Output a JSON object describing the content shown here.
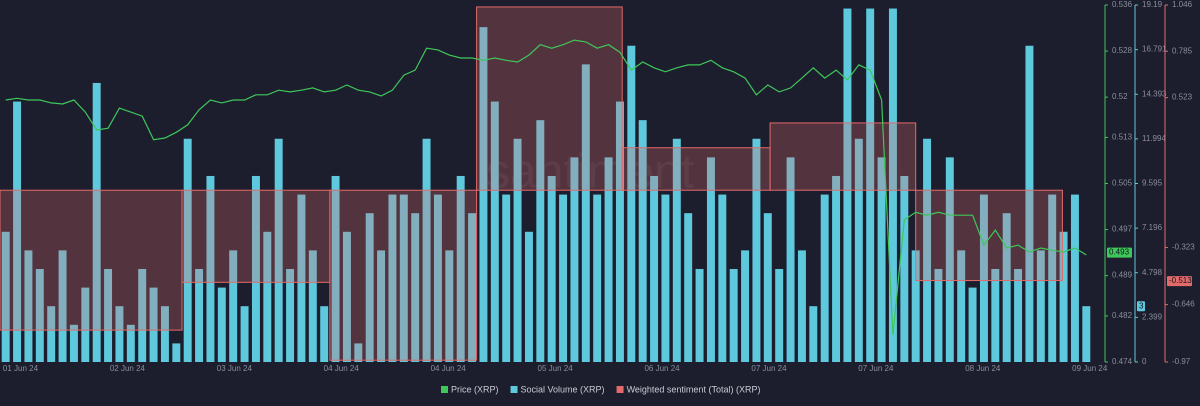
{
  "chart_data": {
    "type": "combo",
    "watermark": "santiment",
    "xlim": [
      0,
      96
    ],
    "xticks": [
      {
        "value": 1.8,
        "label": "01 Jun 24"
      },
      {
        "value": 11.2,
        "label": "02 Jun 24"
      },
      {
        "value": 20.6,
        "label": "03 Jun 24"
      },
      {
        "value": 30,
        "label": "04 Jun 24"
      },
      {
        "value": 39.4,
        "label": "04 Jun 24"
      },
      {
        "value": 48.8,
        "label": "05 Jun 24"
      },
      {
        "value": 58.2,
        "label": "06 Jun 24"
      },
      {
        "value": 67.6,
        "label": "07 Jun 24"
      },
      {
        "value": 77,
        "label": "07 Jun 24"
      },
      {
        "value": 86.4,
        "label": "08 Jun 24"
      },
      {
        "value": 95.8,
        "label": "09 Jun 24"
      }
    ],
    "ylim": [
      0.474,
      0.536
    ],
    "yticks": [
      0.536,
      0.528,
      0.52,
      0.513,
      0.505,
      0.497,
      0.489,
      0.482,
      0.474
    ],
    "y2lim": [
      0,
      19.19
    ],
    "y2ticks": [
      19.19,
      16.791,
      14.393,
      11.994,
      9.595,
      7.196,
      4.798,
      2.399,
      0
    ],
    "y3lim": [
      -0.97,
      1.046
    ],
    "y3ticks": [
      1.046,
      0.785,
      0.523,
      -0.323,
      -0.646,
      -0.97
    ],
    "series": [
      {
        "name": "Social Volume (XRP)",
        "type": "bar",
        "axis": "y2",
        "color": "#5ec8dd",
        "last_value": 3,
        "values": [
          7,
          14,
          6,
          5,
          3,
          6,
          2,
          4,
          15,
          5,
          3,
          2,
          5,
          4,
          3,
          1,
          12,
          5,
          10,
          4,
          6,
          3,
          10,
          7,
          12,
          5,
          9,
          6,
          3,
          10,
          7,
          1,
          8,
          6,
          9,
          9,
          8,
          12,
          9,
          6,
          10,
          8,
          18,
          14,
          9,
          12,
          7,
          13,
          10,
          9,
          11,
          16,
          9,
          11,
          14,
          17,
          13,
          10,
          9,
          12,
          8,
          5,
          11,
          9,
          5,
          6,
          12,
          8,
          5,
          11,
          6,
          3,
          9,
          10,
          19,
          12,
          19,
          11,
          19,
          10,
          6,
          12,
          5,
          11,
          6,
          4,
          9,
          5,
          8,
          5,
          17,
          6,
          9,
          7,
          9,
          3
        ]
      },
      {
        "name": "Weighted sentiment (Total) (XRP)",
        "type": "step",
        "axis": "y3",
        "color": "#e36a6a",
        "last_value": -0.513,
        "bins": [
          0,
          16,
          29,
          41.9,
          54.7,
          67.7,
          80.5,
          93.4
        ],
        "values": [
          -0.79,
          -0.52,
          -0.96,
          1.035,
          0.24,
          0.38,
          -0.51
        ]
      },
      {
        "name": "Price (XRP)",
        "type": "line",
        "axis": "y",
        "color": "#3ec75a",
        "last_value": 0.493,
        "values": [
          0.5195,
          0.5198,
          0.5195,
          0.5195,
          0.519,
          0.5188,
          0.5195,
          0.5174,
          0.5143,
          0.5146,
          0.5181,
          0.5174,
          0.5167,
          0.5126,
          0.5129,
          0.5139,
          0.5152,
          0.5178,
          0.5195,
          0.519,
          0.5195,
          0.5195,
          0.5204,
          0.5204,
          0.5212,
          0.5209,
          0.5212,
          0.5216,
          0.5209,
          0.5212,
          0.5221,
          0.5212,
          0.5209,
          0.5202,
          0.5212,
          0.5238,
          0.5247,
          0.5285,
          0.5282,
          0.5273,
          0.5268,
          0.5268,
          0.5264,
          0.5268,
          0.5264,
          0.5261,
          0.5273,
          0.5291,
          0.5285,
          0.5291,
          0.5299,
          0.5296,
          0.5285,
          0.5291,
          0.5278,
          0.5247,
          0.5261,
          0.5251,
          0.5244,
          0.5251,
          0.5256,
          0.5256,
          0.5264,
          0.5251,
          0.5244,
          0.5233,
          0.5204,
          0.5221,
          0.5209,
          0.5216,
          0.5233,
          0.5251,
          0.5233,
          0.5247,
          0.523,
          0.5256,
          0.5247,
          0.5195,
          0.4787,
          0.4987,
          0.5,
          0.4995,
          0.5,
          0.4995,
          0.4995,
          0.4995,
          0.4943,
          0.4969,
          0.4938,
          0.4943,
          0.4931,
          0.4938,
          0.4934,
          0.4931,
          0.4938,
          0.4926
        ]
      }
    ]
  }
}
